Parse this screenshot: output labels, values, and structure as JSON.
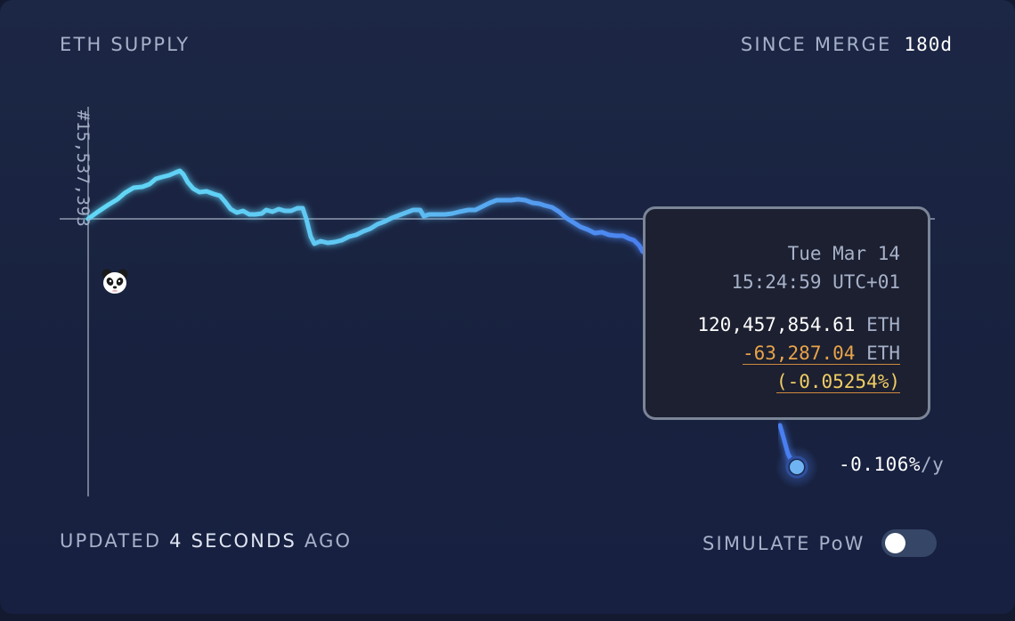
{
  "header": {
    "title": "ETH SUPPLY",
    "range_label": "SINCE MERGE",
    "range_value": "180d"
  },
  "chart": {
    "block_label": "#15,537,393",
    "marker_icon": "panda-icon",
    "rate_value": "-0.106%",
    "rate_unit": "/y"
  },
  "tooltip": {
    "date": "Tue Mar 14",
    "time": "15:24:59 UTC+01",
    "supply": "120,457,854.61",
    "supply_unit": "ETH",
    "delta": "-63,287.04",
    "delta_unit": "ETH",
    "delta_pct": "(-0.05254%)"
  },
  "footer": {
    "updated_prefix": "UPDATED",
    "updated_value": "4 SECONDS",
    "updated_suffix": "AGO",
    "simulate_label": "SIMULATE PoW",
    "simulate_pow": false
  },
  "colors": {
    "line_start": "#62d8f7",
    "line_end": "#4a7ff0",
    "tooltip_delta": "#e8a34a",
    "tooltip_pct": "#f1cc64"
  }
}
